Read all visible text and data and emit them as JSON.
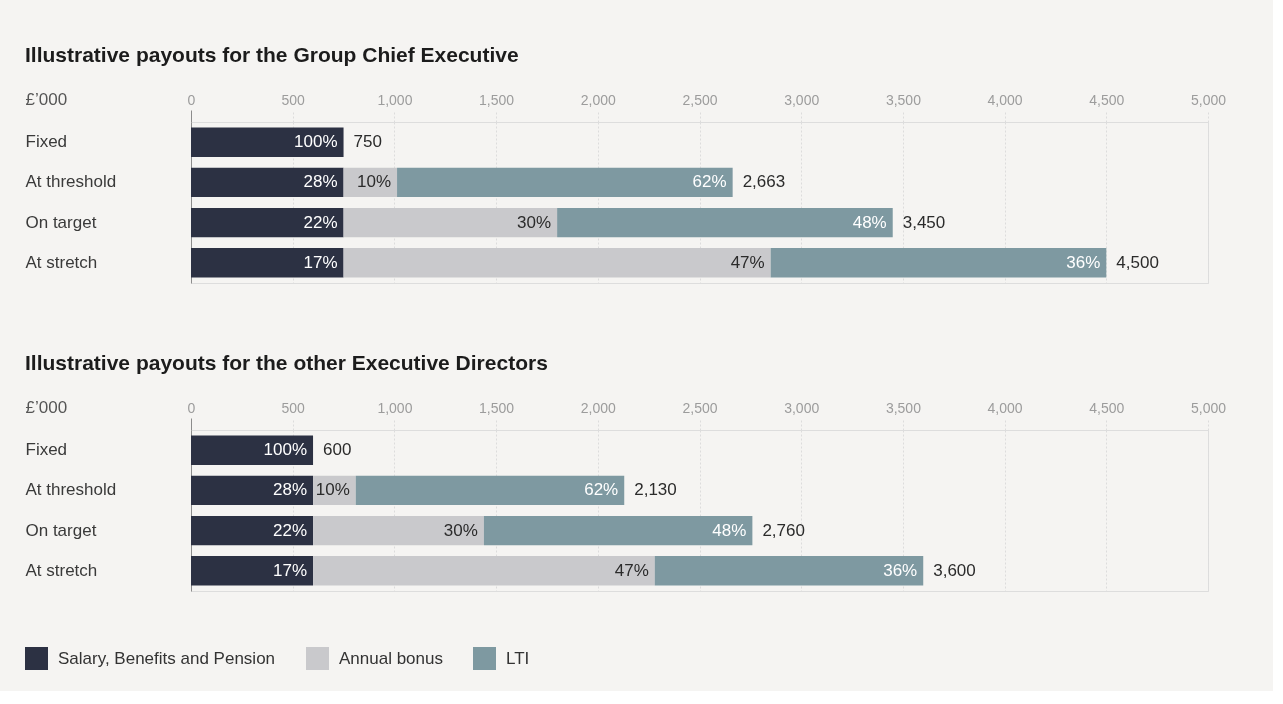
{
  "chart_data": [
    {
      "type": "bar",
      "orientation": "horizontal",
      "stacked": true,
      "title": "Illustrative payouts for the Group Chief Executive",
      "xlabel": "£’000",
      "categories": [
        "Fixed",
        "At threshold",
        "On target",
        "At stretch"
      ],
      "series": [
        {
          "color": "#2c3143",
          "values": [
            750,
            750,
            750,
            750
          ]
        },
        {
          "color": "#c9c9cc",
          "values": [
            null,
            263,
            1050,
            2100
          ]
        },
        {
          "color": "#7e99a1",
          "values": [
            null,
            1650,
            1650,
            1650
          ]
        }
      ],
      "totals": [
        "750",
        "2,663",
        "3,450",
        "4,500"
      ],
      "annotations": [
        {
          "text": "100%",
          "x": 750,
          "y": "Fixed"
        },
        {
          "text": "28%",
          "x": 750,
          "y": "At threshold"
        },
        {
          "text": "10%",
          "x": 1013,
          "y": "At threshold"
        },
        {
          "text": "62%",
          "x": 2663,
          "y": "At threshold"
        },
        {
          "text": "22%",
          "x": 750,
          "y": "On target"
        },
        {
          "text": "30%",
          "x": 1800,
          "y": "On target"
        },
        {
          "text": "48%",
          "x": 3450,
          "y": "On target"
        },
        {
          "text": "17%",
          "x": 750,
          "y": "At stretch"
        },
        {
          "text": "47%",
          "x": 2850,
          "y": "At stretch"
        },
        {
          "text": "36%",
          "x": 4500,
          "y": "At stretch"
        }
      ],
      "xlim": [
        0,
        5000
      ],
      "xticks": [
        {
          "value": 0,
          "label": "0"
        },
        {
          "value": 500,
          "label": "500"
        },
        {
          "value": 1000,
          "label": "1,000"
        },
        {
          "value": 1500,
          "label": "1,500"
        },
        {
          "value": 2000,
          "label": "2,000"
        },
        {
          "value": 2500,
          "label": "2,500"
        },
        {
          "value": 3000,
          "label": "3,000"
        },
        {
          "value": 3500,
          "label": "3,500"
        },
        {
          "value": 4000,
          "label": "4,000"
        },
        {
          "value": 4500,
          "label": "4,500"
        },
        {
          "value": 5000,
          "label": "5,000"
        }
      ],
      "grid": "x"
    },
    {
      "type": "bar",
      "orientation": "horizontal",
      "stacked": true,
      "title": "Illustrative payouts for the other Executive Directors",
      "xlabel": "£’000",
      "categories": [
        "Fixed",
        "At threshold",
        "On target",
        "At stretch"
      ],
      "series": [
        {
          "name": "Salary, Benefits and Pension",
          "color": "#2c3143",
          "values": [
            600,
            600,
            600,
            600
          ]
        },
        {
          "name": "Annual bonus",
          "color": "#c9c9cc",
          "values": [
            null,
            210,
            840,
            1680
          ]
        },
        {
          "name": "LTI",
          "color": "#7e99a1",
          "values": [
            null,
            1320,
            1320,
            1320
          ]
        }
      ],
      "totals": [
        "600",
        "2,130",
        "2,760",
        "3,600"
      ],
      "annotations": [
        {
          "text": "100%",
          "x": 600,
          "y": "Fixed"
        },
        {
          "text": "28%",
          "x": 600,
          "y": "At threshold"
        },
        {
          "text": "10%",
          "x": 810,
          "y": "At threshold"
        },
        {
          "text": "62%",
          "x": 2130,
          "y": "At threshold"
        },
        {
          "text": "22%",
          "x": 600,
          "y": "On target"
        },
        {
          "text": "30%",
          "x": 1440,
          "y": "On target"
        },
        {
          "text": "48%",
          "x": 2760,
          "y": "On target"
        },
        {
          "text": "17%",
          "x": 600,
          "y": "At stretch"
        },
        {
          "text": "47%",
          "x": 2280,
          "y": "At stretch"
        },
        {
          "text": "36%",
          "x": 3600,
          "y": "At stretch"
        }
      ],
      "xlim": [
        0,
        5000
      ],
      "xticks": [
        {
          "value": 0,
          "label": "0"
        },
        {
          "value": 500,
          "label": "500"
        },
        {
          "value": 1000,
          "label": "1,000"
        },
        {
          "value": 1500,
          "label": "1,500"
        },
        {
          "value": 2000,
          "label": "2,000"
        },
        {
          "value": 2500,
          "label": "2,500"
        },
        {
          "value": 3000,
          "label": "3,000"
        },
        {
          "value": 3500,
          "label": "3,500"
        },
        {
          "value": 4000,
          "label": "4,000"
        },
        {
          "value": 4500,
          "label": "4,500"
        },
        {
          "value": 5000,
          "label": "5,000"
        }
      ],
      "grid": "x",
      "legend": "bottom left"
    }
  ]
}
